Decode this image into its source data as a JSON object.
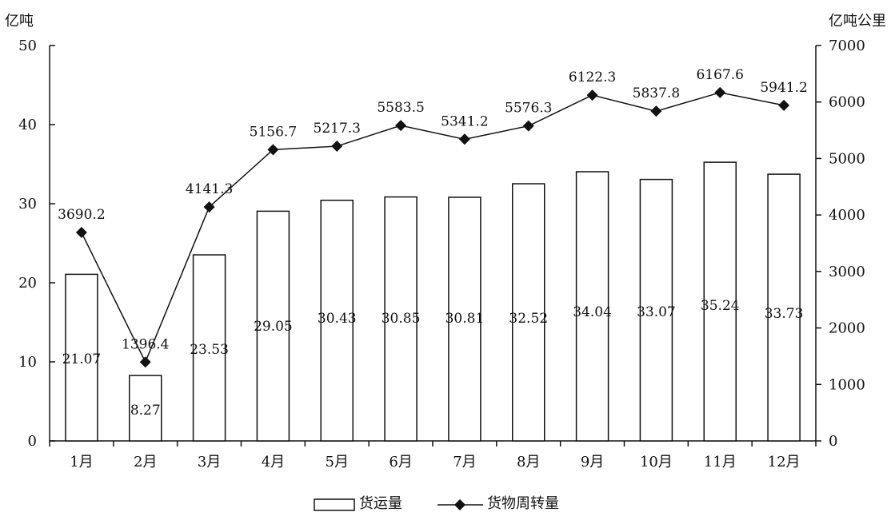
{
  "chart_data": {
    "type": "bar",
    "categories": [
      "1月",
      "2月",
      "3月",
      "4月",
      "5月",
      "6月",
      "7月",
      "8月",
      "9月",
      "10月",
      "11月",
      "12月"
    ],
    "left_axis": {
      "unit": "亿吨",
      "ylim": [
        0,
        50
      ],
      "ticks": [
        "0",
        "10",
        "20",
        "30",
        "40",
        "50"
      ]
    },
    "right_axis": {
      "unit": "亿吨公里",
      "ylim": [
        0,
        7000
      ],
      "ticks": [
        "0",
        "1000",
        "2000",
        "3000",
        "4000",
        "5000",
        "6000",
        "7000"
      ]
    },
    "series": [
      {
        "name": "货运量",
        "type": "bar",
        "axis": "left",
        "values": [
          21.07,
          8.27,
          23.53,
          29.05,
          30.43,
          30.85,
          30.81,
          32.52,
          34.04,
          33.07,
          35.24,
          33.73
        ],
        "labels": [
          "21.07",
          "8.27",
          "23.53",
          "29.05",
          "30.43",
          "30.85",
          "30.81",
          "32.52",
          "34.04",
          "33.07",
          "35.24",
          "33.73"
        ]
      },
      {
        "name": "货物周转量",
        "type": "line",
        "axis": "right",
        "marker": "diamond",
        "values": [
          3690.2,
          1396.4,
          4141.3,
          5156.7,
          5217.3,
          5583.5,
          5341.2,
          5576.3,
          6122.3,
          5837.8,
          6167.6,
          5941.2
        ],
        "labels": [
          "3690.2",
          "1396.4",
          "4141.3",
          "5156.7",
          "5217.3",
          "5583.5",
          "5341.2",
          "5576.3",
          "6122.3",
          "5837.8",
          "6167.6",
          "5941.2"
        ]
      }
    ],
    "legend": {
      "position": "bottom",
      "entries": [
        "货运量",
        "货物周转量"
      ]
    },
    "grid": false
  }
}
